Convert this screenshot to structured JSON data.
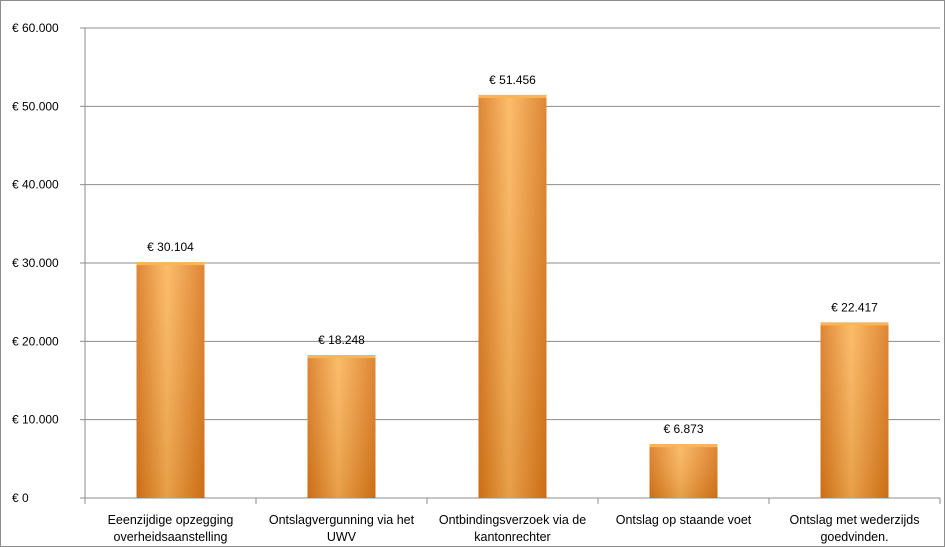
{
  "chart_data": {
    "type": "bar",
    "title": "",
    "xlabel": "",
    "ylabel": "",
    "categories": [
      [
        "Eeenzijdige opzegging",
        "overheidsaanstelling"
      ],
      [
        "Ontslagvergunning via het",
        "UWV"
      ],
      [
        "Ontbindingsverzoek via de",
        "kantonrechter"
      ],
      [
        "Ontslag op staande voet"
      ],
      [
        "Ontslag met wederzijds",
        "goedvinden."
      ]
    ],
    "values": [
      30104,
      18248,
      51456,
      6873,
      22417
    ],
    "value_labels": [
      "€ 30.104",
      "€ 18.248",
      "€ 51.456",
      "€ 6.873",
      "€ 22.417"
    ],
    "ylim": [
      0,
      60000
    ],
    "yticks": [
      0,
      10000,
      20000,
      30000,
      40000,
      50000,
      60000
    ],
    "ytick_labels": [
      "€ 0",
      "€ 10.000",
      "€ 20.000",
      "€ 30.000",
      "€ 40.000",
      "€ 50.000",
      "€ 60.000"
    ],
    "grid": true,
    "legend": "none",
    "bar_color": "#f7952a",
    "bar_color_light": "#fbb457",
    "bar_color_dark": "#d9761a",
    "grid_color": "#8c8c8c"
  }
}
